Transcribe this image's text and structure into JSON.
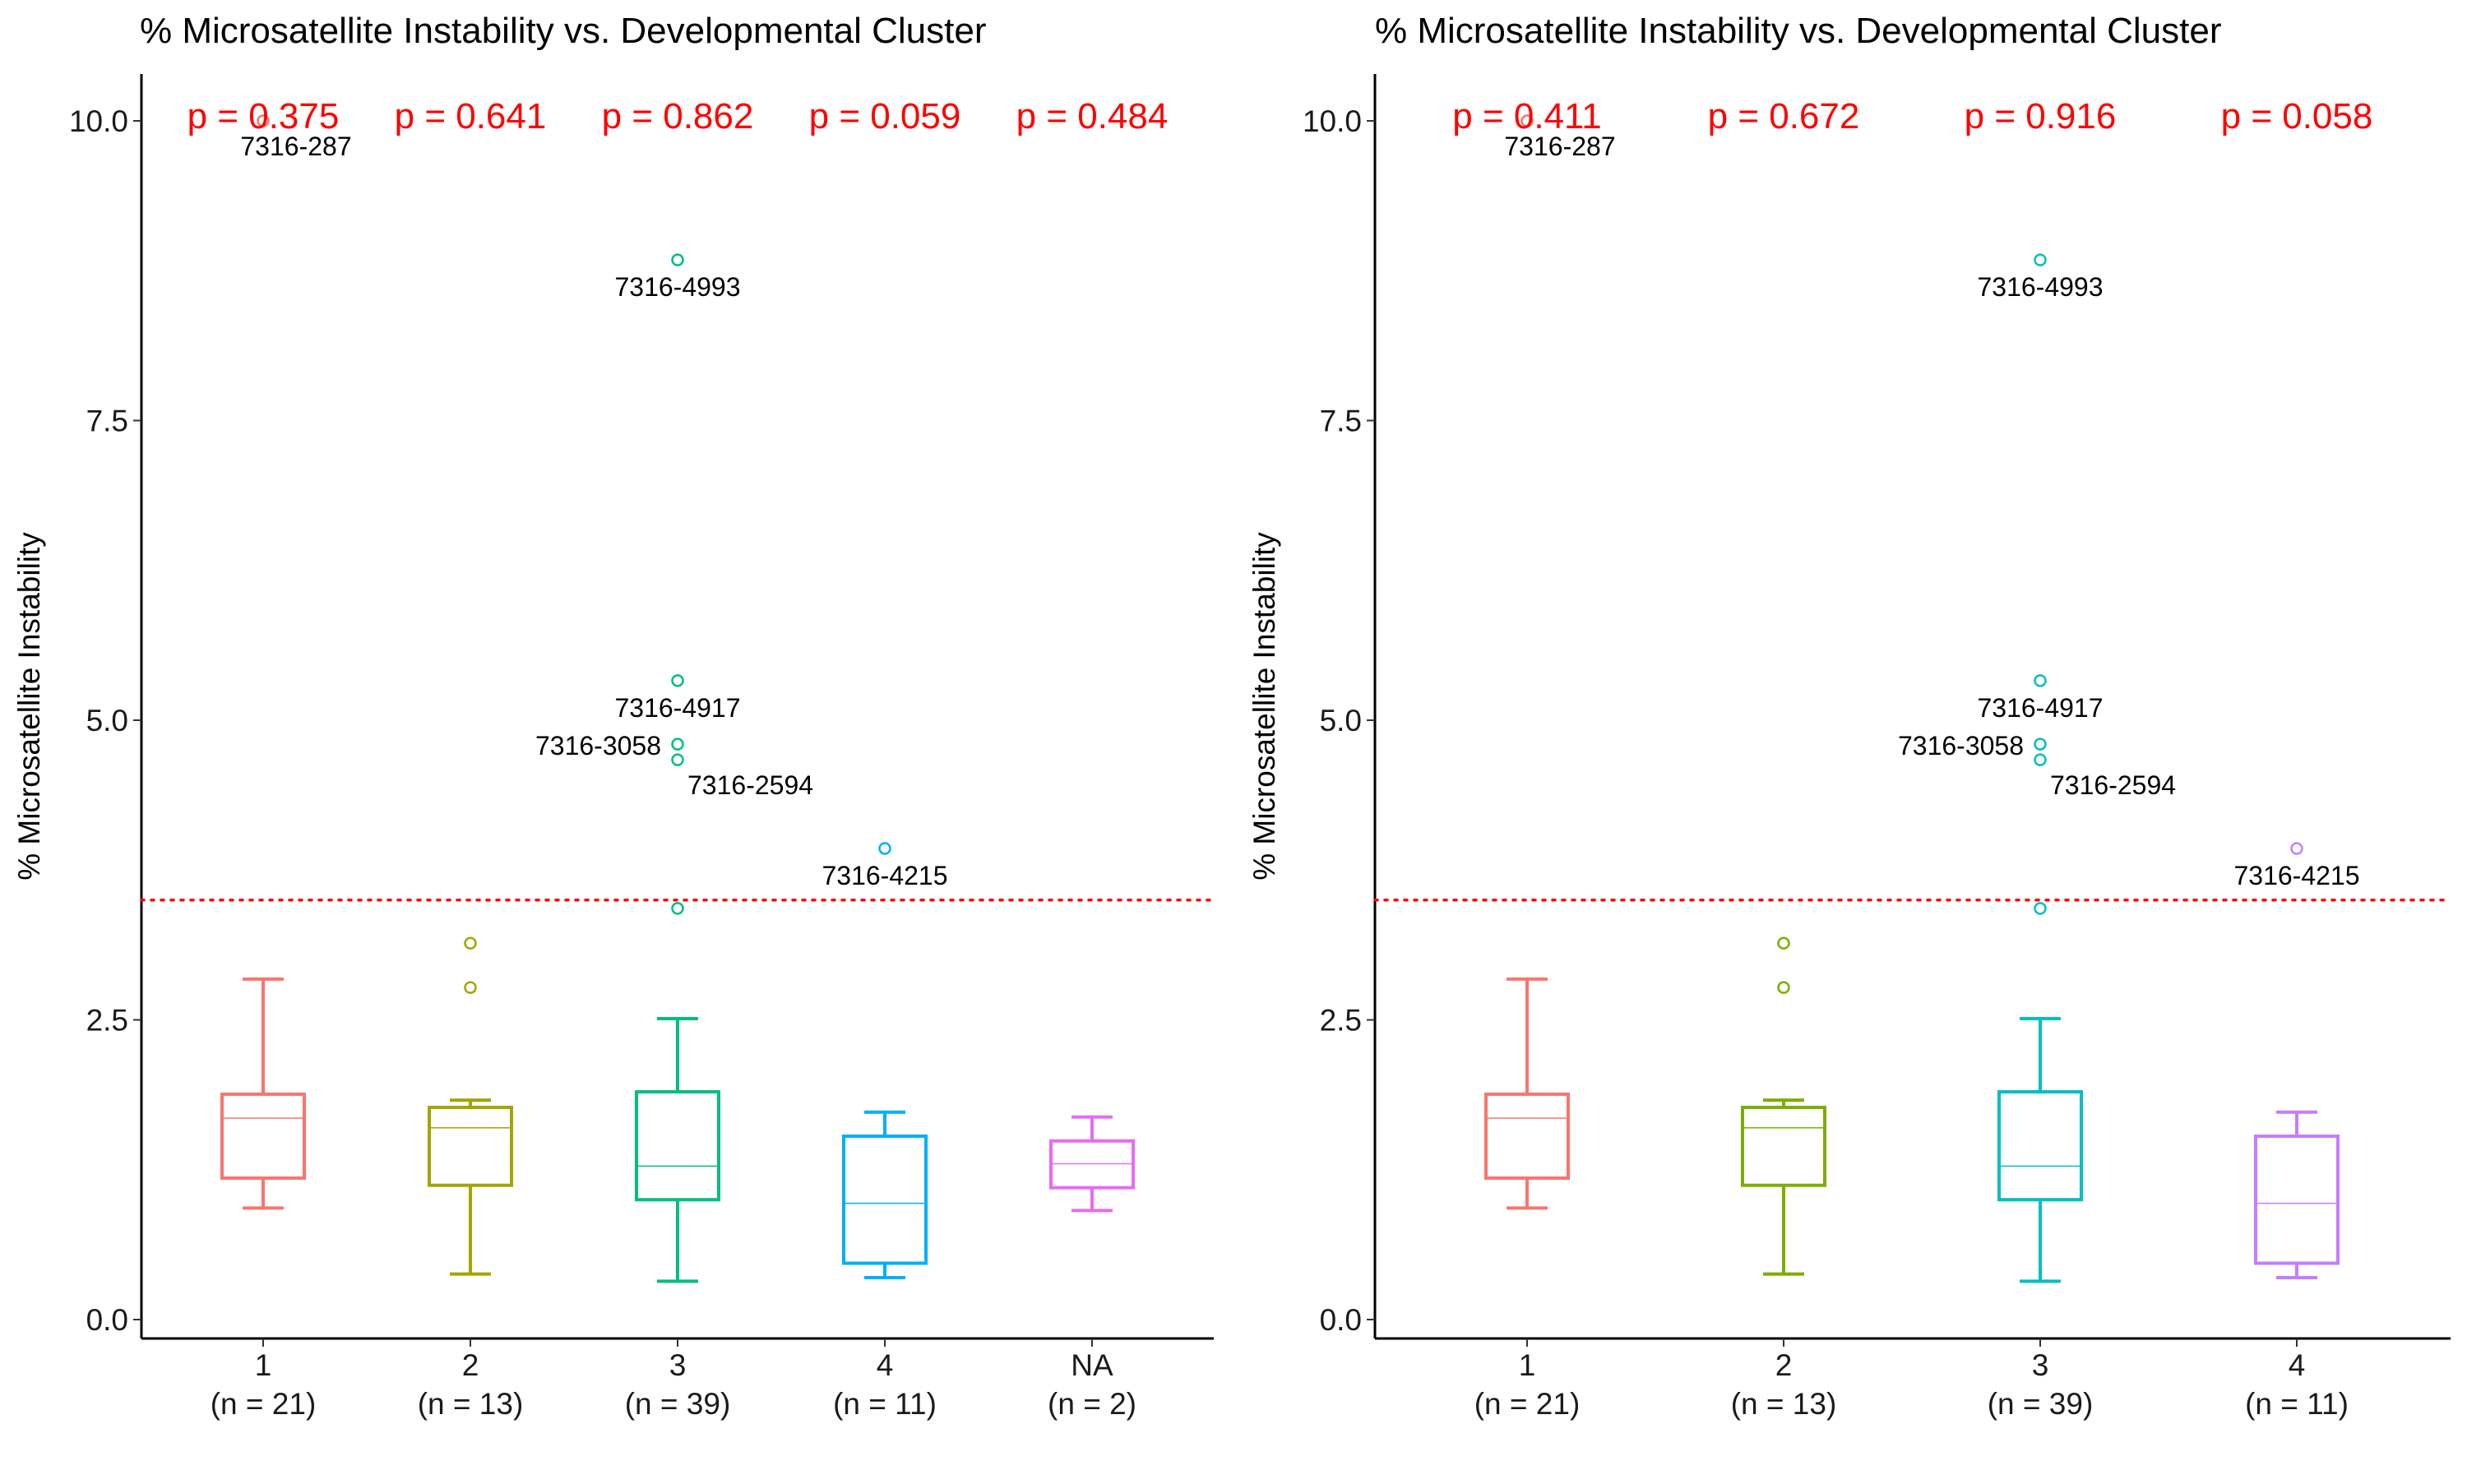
{
  "chart_data": [
    {
      "type": "box",
      "title": "% Microsatellite Instability vs. Developmental Cluster",
      "ylabel": "% Microsatellite Instability",
      "xlabel": "",
      "ylim": [
        0,
        10
      ],
      "yticks": [
        "0.0",
        "2.5",
        "5.0",
        "7.5",
        "10.0"
      ],
      "grid": false,
      "legend": "none",
      "threshold": {
        "value": 3.5,
        "color": "#ff0000",
        "style": "dotted"
      },
      "categories": [
        {
          "label": "1",
          "n": "(n = 21)",
          "color": "#F8766D"
        },
        {
          "label": "2",
          "n": "(n = 13)",
          "color": "#A3A500"
        },
        {
          "label": "3",
          "n": "(n = 39)",
          "color": "#00BF7D"
        },
        {
          "label": "4",
          "n": "(n = 11)",
          "color": "#00B0F6"
        },
        {
          "label": "NA",
          "n": "(n = 2)",
          "color": "#E76BF3"
        }
      ],
      "boxes": [
        {
          "whisker_low": 0.93,
          "q1": 1.18,
          "median": 1.68,
          "q3": 1.88,
          "whisker_high": 2.84
        },
        {
          "whisker_low": 0.38,
          "q1": 1.12,
          "median": 1.6,
          "q3": 1.77,
          "whisker_high": 1.83
        },
        {
          "whisker_low": 0.32,
          "q1": 1.0,
          "median": 1.28,
          "q3": 1.9,
          "whisker_high": 2.51
        },
        {
          "whisker_low": 0.35,
          "q1": 0.47,
          "median": 0.97,
          "q3": 1.53,
          "whisker_high": 1.73
        },
        {
          "whisker_low": 0.91,
          "q1": 1.1,
          "median": 1.3,
          "q3": 1.49,
          "whisker_high": 1.69
        }
      ],
      "outliers": [
        {
          "category": "1",
          "value": 10.0
        },
        {
          "category": "2",
          "value": 3.14
        },
        {
          "category": "2",
          "value": 2.77
        },
        {
          "category": "3",
          "value": 8.84
        },
        {
          "category": "3",
          "value": 5.33
        },
        {
          "category": "3",
          "value": 4.8
        },
        {
          "category": "3",
          "value": 4.67
        },
        {
          "category": "3",
          "value": 3.43
        },
        {
          "category": "4",
          "value": 3.93
        }
      ],
      "point_labels": [
        {
          "text": "7316-287",
          "category": "1",
          "value": 10.0,
          "anchor": "below"
        },
        {
          "text": "7316-4993",
          "category": "3",
          "value": 8.84,
          "anchor": "below"
        },
        {
          "text": "7316-4917",
          "category": "3",
          "value": 5.33,
          "anchor": "below"
        },
        {
          "text": "7316-3058",
          "category": "3",
          "value": 4.8,
          "anchor": "left"
        },
        {
          "text": "7316-2594",
          "category": "3",
          "value": 4.67,
          "anchor": "below-right"
        },
        {
          "text": "7316-4215",
          "category": "4",
          "value": 3.93,
          "anchor": "below"
        }
      ],
      "p_values": [
        "p = 0.375",
        "p = 0.641",
        "p = 0.862",
        "p = 0.059",
        "p = 0.484"
      ],
      "p_value_color": "#ff0000"
    },
    {
      "type": "box",
      "title": "% Microsatellite Instability vs. Developmental Cluster",
      "ylabel": "% Microsatellite Instability",
      "xlabel": "",
      "ylim": [
        0,
        10
      ],
      "yticks": [
        "0.0",
        "2.5",
        "5.0",
        "7.5",
        "10.0"
      ],
      "grid": false,
      "legend": "none",
      "threshold": {
        "value": 3.5,
        "color": "#ff0000",
        "style": "dotted"
      },
      "categories": [
        {
          "label": "1",
          "n": "(n = 21)",
          "color": "#F8766D"
        },
        {
          "label": "2",
          "n": "(n = 13)",
          "color": "#7CAE00"
        },
        {
          "label": "3",
          "n": "(n = 39)",
          "color": "#00BFC4"
        },
        {
          "label": "4",
          "n": "(n = 11)",
          "color": "#C77CFF"
        }
      ],
      "boxes": [
        {
          "whisker_low": 0.93,
          "q1": 1.18,
          "median": 1.68,
          "q3": 1.88,
          "whisker_high": 2.84
        },
        {
          "whisker_low": 0.38,
          "q1": 1.12,
          "median": 1.6,
          "q3": 1.77,
          "whisker_high": 1.83
        },
        {
          "whisker_low": 0.32,
          "q1": 1.0,
          "median": 1.28,
          "q3": 1.9,
          "whisker_high": 2.51
        },
        {
          "whisker_low": 0.35,
          "q1": 0.47,
          "median": 0.97,
          "q3": 1.53,
          "whisker_high": 1.73
        }
      ],
      "outliers": [
        {
          "category": "1",
          "value": 10.0
        },
        {
          "category": "2",
          "value": 3.14
        },
        {
          "category": "2",
          "value": 2.77
        },
        {
          "category": "3",
          "value": 8.84
        },
        {
          "category": "3",
          "value": 5.33
        },
        {
          "category": "3",
          "value": 4.8
        },
        {
          "category": "3",
          "value": 4.67
        },
        {
          "category": "3",
          "value": 3.43
        },
        {
          "category": "4",
          "value": 3.93
        }
      ],
      "point_labels": [
        {
          "text": "7316-287",
          "category": "1",
          "value": 10.0,
          "anchor": "below"
        },
        {
          "text": "7316-4993",
          "category": "3",
          "value": 8.84,
          "anchor": "below"
        },
        {
          "text": "7316-4917",
          "category": "3",
          "value": 5.33,
          "anchor": "below"
        },
        {
          "text": "7316-3058",
          "category": "3",
          "value": 4.8,
          "anchor": "left"
        },
        {
          "text": "7316-2594",
          "category": "3",
          "value": 4.67,
          "anchor": "below-right"
        },
        {
          "text": "7316-4215",
          "category": "4",
          "value": 3.93,
          "anchor": "below"
        }
      ],
      "p_values": [
        "p = 0.411",
        "p = 0.672",
        "p = 0.916",
        "p = 0.058"
      ],
      "p_value_color": "#ff0000"
    }
  ]
}
